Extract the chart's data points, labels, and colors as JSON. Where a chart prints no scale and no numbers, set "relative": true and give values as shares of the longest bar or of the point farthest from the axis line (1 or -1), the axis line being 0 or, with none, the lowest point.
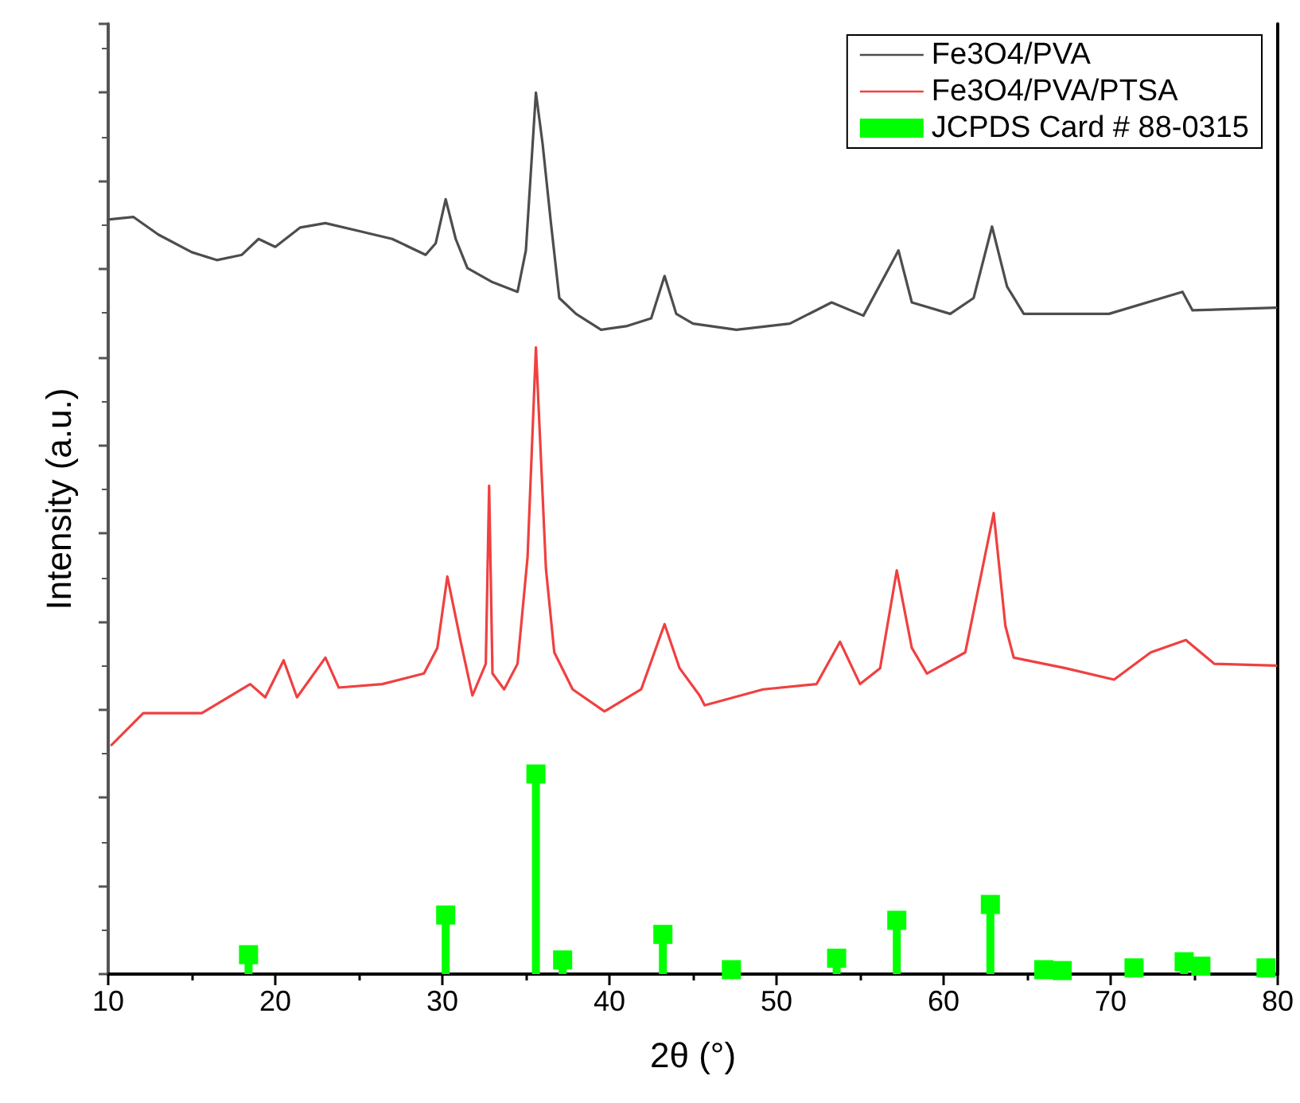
{
  "chart_data": {
    "type": "line",
    "xlabel": "2θ (°)",
    "ylabel": "Intensity (a.u.)",
    "relative": true,
    "xlim": [
      10,
      80
    ],
    "xticks": [
      10,
      20,
      30,
      40,
      50,
      60,
      70,
      80
    ],
    "tick_labels": "x",
    "grid": false,
    "legend": "top right",
    "marker": "none",
    "line_style": "solid",
    "series": [
      {
        "name": "Fe3O4/PVA",
        "color": "#4d4d4d",
        "x": [
          10,
          11.5,
          13,
          15,
          16.5,
          18,
          19,
          20,
          21.5,
          23,
          25,
          27,
          29,
          29.6,
          30.2,
          30.8,
          31.5,
          33,
          34.5,
          35,
          35.6,
          36,
          36.5,
          37,
          38,
          39.5,
          41,
          42.5,
          43.3,
          44,
          45,
          47.6,
          50.8,
          53.3,
          55.2,
          57.3,
          58.1,
          60.4,
          61.8,
          62.9,
          63.8,
          64.8,
          69.9,
          74.3,
          74.9,
          79.9
        ],
        "values": [
          0.856,
          0.859,
          0.839,
          0.819,
          0.81,
          0.816,
          0.834,
          0.825,
          0.847,
          0.852,
          0.843,
          0.834,
          0.816,
          0.829,
          0.879,
          0.834,
          0.801,
          0.785,
          0.774,
          0.821,
          1.0,
          0.942,
          0.852,
          0.767,
          0.749,
          0.731,
          0.735,
          0.744,
          0.792,
          0.749,
          0.738,
          0.731,
          0.738,
          0.762,
          0.747,
          0.821,
          0.762,
          0.749,
          0.767,
          0.848,
          0.78,
          0.749,
          0.749,
          0.774,
          0.753,
          0.756
        ]
      },
      {
        "name": "Fe3O4/PVA/PTSA",
        "color": "#f04040",
        "x": [
          10.2,
          12.1,
          15.6,
          18.5,
          19.4,
          20.5,
          21.3,
          23.0,
          23.8,
          26.4,
          28.9,
          29.7,
          30.3,
          31.1,
          31.8,
          32.6,
          32.8,
          33.0,
          33.7,
          34.5,
          35.1,
          35.6,
          36.2,
          36.7,
          37.8,
          39.7,
          41.9,
          43.3,
          44.2,
          45.4,
          45.7,
          49.2,
          52.4,
          53.8,
          55.0,
          56.2,
          57.2,
          58.1,
          59.0,
          61.3,
          63.0,
          63.7,
          64.2,
          67.3,
          70.2,
          72.4,
          74.5,
          76.2,
          79.9
        ],
        "values": [
          0.26,
          0.296,
          0.296,
          0.329,
          0.314,
          0.356,
          0.314,
          0.359,
          0.325,
          0.329,
          0.341,
          0.37,
          0.451,
          0.377,
          0.316,
          0.352,
          0.554,
          0.341,
          0.323,
          0.352,
          0.473,
          0.711,
          0.46,
          0.365,
          0.323,
          0.298,
          0.323,
          0.397,
          0.347,
          0.316,
          0.305,
          0.323,
          0.329,
          0.377,
          0.329,
          0.347,
          0.458,
          0.37,
          0.341,
          0.365,
          0.523,
          0.395,
          0.359,
          0.347,
          0.334,
          0.365,
          0.379,
          0.352,
          0.35
        ]
      },
      {
        "name": "JCPDS Card # 88-0315",
        "type": "lollipop",
        "marker": "square",
        "color": "#00ff00",
        "x": [
          18.4,
          30.2,
          35.6,
          37.2,
          43.2,
          47.3,
          53.6,
          57.2,
          62.8,
          66.0,
          67.1,
          71.4,
          74.4,
          75.4,
          79.3
        ],
        "values": [
          0.022,
          0.067,
          0.227,
          0.016,
          0.045,
          0.005,
          0.018,
          0.061,
          0.079,
          0.005,
          0.004,
          0.007,
          0.014,
          0.009,
          0.007
        ]
      }
    ]
  }
}
